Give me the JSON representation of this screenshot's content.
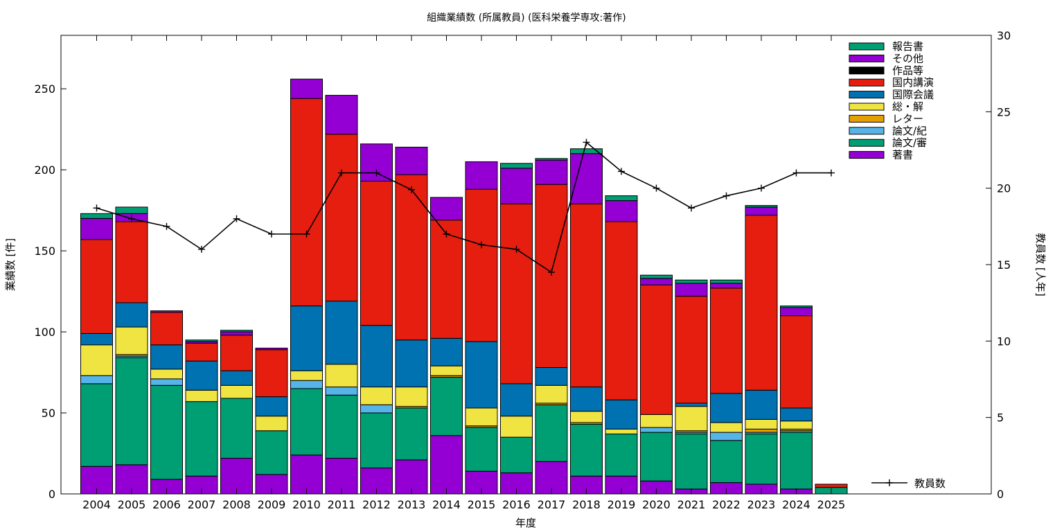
{
  "chart_data": {
    "type": "bar",
    "stacked": true,
    "title": "組織業績数 (所属教員) (医科栄養学専攻:著作)",
    "xlabel": "年度",
    "ylabel": "業績数 [件]",
    "y2label": "教員数 [人年]",
    "ylim": [
      0,
      283
    ],
    "y2lim": [
      0,
      30
    ],
    "yticks": [
      0,
      50,
      100,
      150,
      200,
      250
    ],
    "y2ticks": [
      0,
      5,
      10,
      15,
      20,
      25,
      30
    ],
    "grid": false,
    "legend_position": "top-right",
    "categories": [
      "2004",
      "2005",
      "2006",
      "2007",
      "2008",
      "2009",
      "2010",
      "2011",
      "2012",
      "2013",
      "2014",
      "2015",
      "2016",
      "2017",
      "2018",
      "2019",
      "2020",
      "2021",
      "2022",
      "2023",
      "2024",
      "2025"
    ],
    "series": [
      {
        "name": "著書",
        "color": "#9400d3",
        "values": [
          17,
          18,
          9,
          11,
          22,
          12,
          24,
          22,
          16,
          21,
          36,
          14,
          13,
          20,
          11,
          11,
          8,
          3,
          7,
          6,
          3,
          0
        ]
      },
      {
        "name": "論文/審",
        "color": "#009e73",
        "values": [
          51,
          66,
          58,
          46,
          37,
          27,
          41,
          39,
          34,
          32,
          36,
          27,
          22,
          35,
          32,
          26,
          30,
          34,
          26,
          31,
          35,
          4
        ]
      },
      {
        "name": "論文/紀",
        "color": "#56b4e9",
        "values": [
          5,
          1,
          4,
          0,
          0,
          0,
          5,
          5,
          5,
          0,
          0,
          0,
          0,
          0,
          0,
          0,
          3,
          1,
          5,
          1,
          1,
          0
        ]
      },
      {
        "name": "レター",
        "color": "#e69f00",
        "values": [
          0,
          1,
          0,
          0,
          0,
          0,
          0,
          0,
          0,
          1,
          1,
          1,
          0,
          1,
          1,
          0,
          0,
          1,
          0,
          2,
          1,
          0
        ]
      },
      {
        "name": "総・解",
        "color": "#f0e442",
        "values": [
          19,
          17,
          6,
          7,
          8,
          9,
          6,
          14,
          11,
          12,
          6,
          11,
          13,
          11,
          7,
          3,
          8,
          15,
          6,
          6,
          5,
          0
        ]
      },
      {
        "name": "国際会議",
        "color": "#0072b2",
        "values": [
          7,
          15,
          15,
          18,
          9,
          12,
          40,
          39,
          38,
          29,
          17,
          41,
          20,
          11,
          15,
          18,
          0,
          2,
          18,
          18,
          8,
          0
        ]
      },
      {
        "name": "国内講演",
        "color": "#e51e10",
        "values": [
          58,
          50,
          20,
          11,
          22,
          29,
          128,
          103,
          89,
          102,
          73,
          94,
          111,
          113,
          113,
          110,
          80,
          66,
          65,
          108,
          57,
          2
        ]
      },
      {
        "name": "作品等",
        "color": "#000000",
        "values": [
          0,
          0,
          0,
          0,
          0,
          0,
          0,
          0,
          0,
          0,
          0,
          0,
          0,
          0,
          0,
          0,
          0,
          0,
          0,
          0,
          0,
          0
        ]
      },
      {
        "name": "その他",
        "color": "#9400d3",
        "values": [
          13,
          5,
          1,
          1,
          2,
          1,
          12,
          24,
          23,
          17,
          14,
          17,
          22,
          15,
          31,
          13,
          4,
          8,
          3,
          5,
          5,
          0
        ]
      },
      {
        "name": "報告書",
        "color": "#009e73",
        "values": [
          3,
          4,
          0,
          1,
          1,
          0,
          0,
          0,
          0,
          0,
          0,
          0,
          3,
          1,
          3,
          3,
          2,
          2,
          2,
          1,
          1,
          0
        ]
      }
    ],
    "line_series": {
      "name": "教員数",
      "color": "#000000",
      "axis": "right",
      "values": [
        18.7,
        18.0,
        17.5,
        16.0,
        18.0,
        17.0,
        17.0,
        21.0,
        21.0,
        19.9,
        17.0,
        16.3,
        16.0,
        14.5,
        23.0,
        21.1,
        20.0,
        18.7,
        19.5,
        20.0,
        21.0,
        21.0
      ]
    }
  }
}
